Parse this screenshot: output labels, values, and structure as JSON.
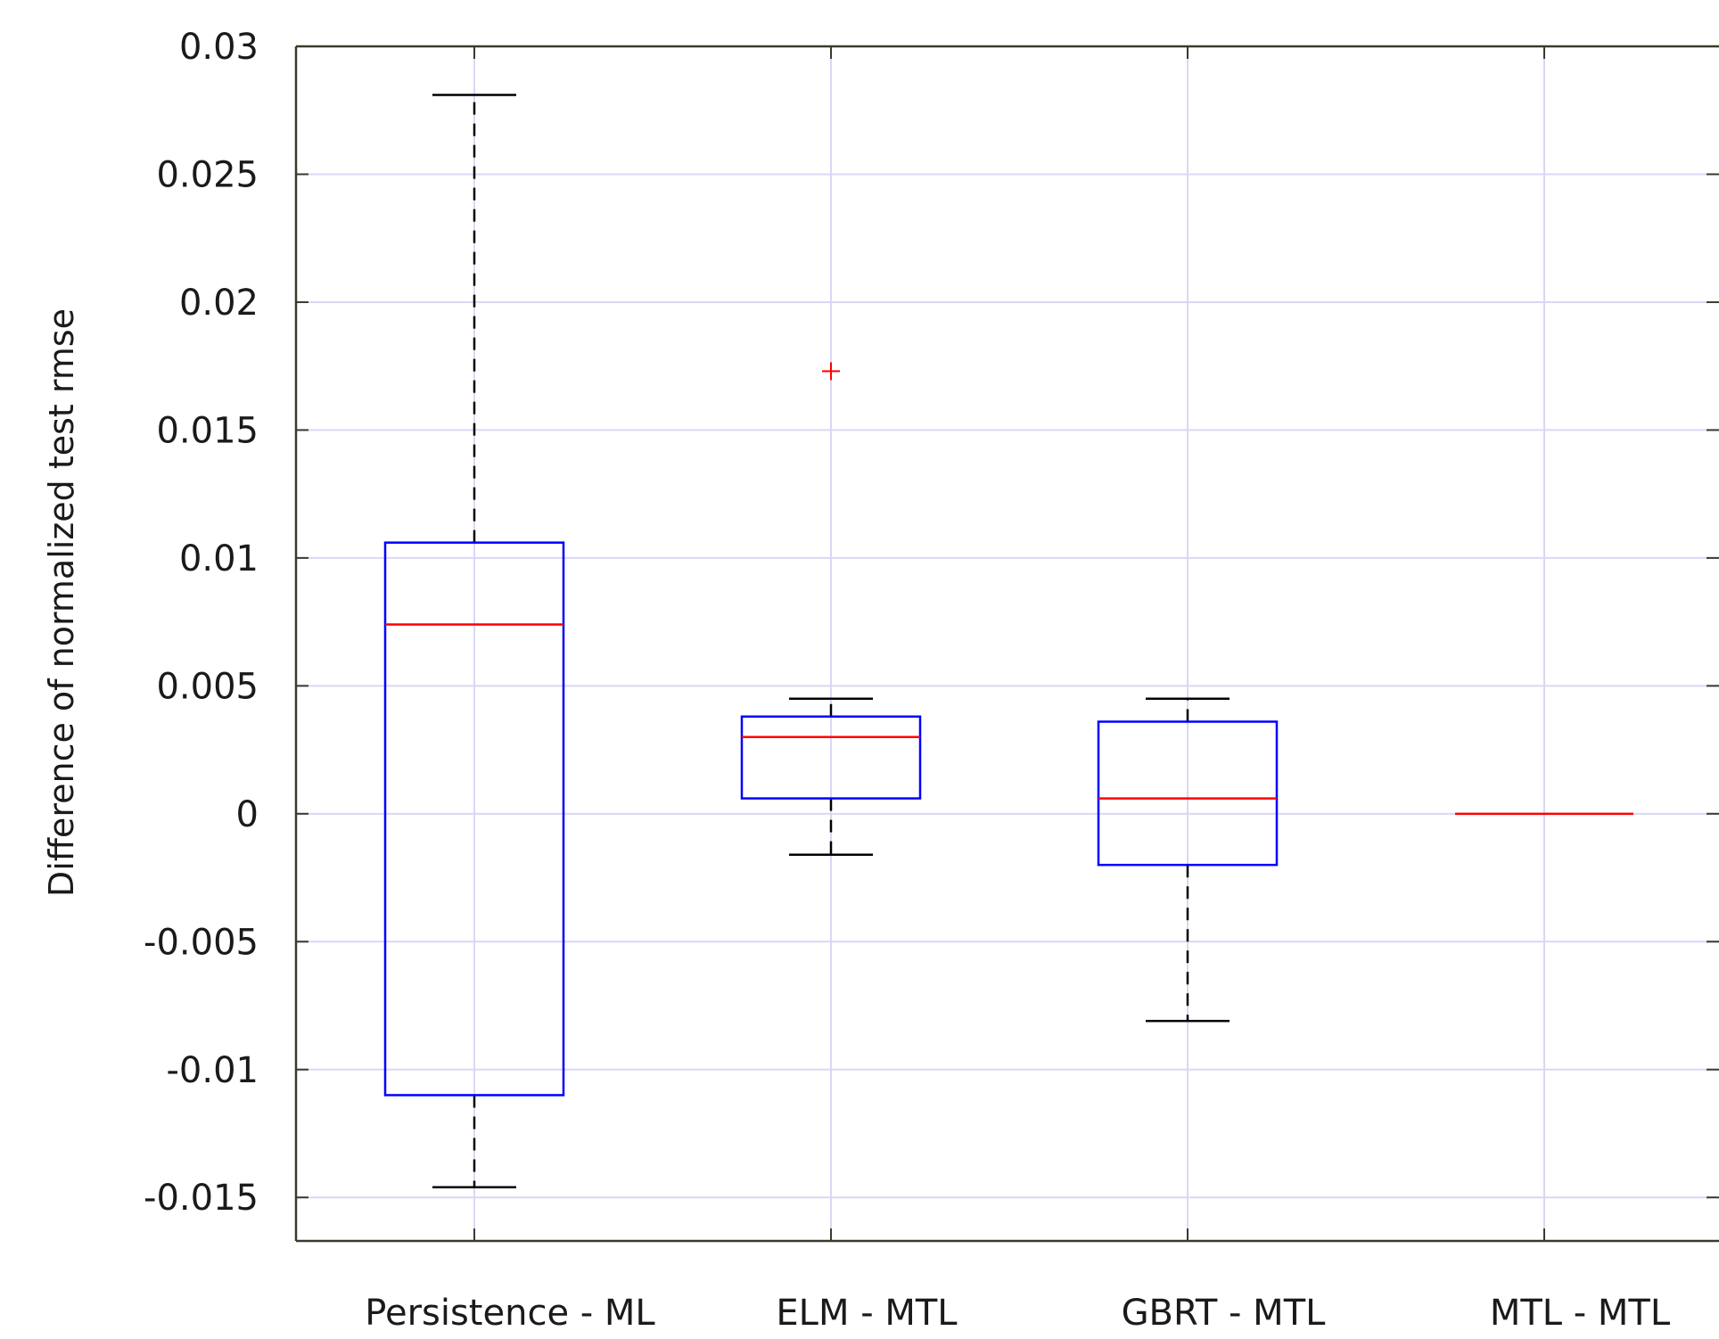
{
  "chart_data": {
    "type": "box",
    "ylabel": "Difference of normalized test rmse",
    "xlabel": "",
    "title": "",
    "ylim": [
      -0.0167,
      0.03
    ],
    "yticks": [
      -0.015,
      -0.01,
      -0.005,
      0,
      0.005,
      0.01,
      0.015,
      0.02,
      0.025,
      0.03
    ],
    "yticklabels": [
      "-0.015",
      "-0.01",
      "-0.005",
      "0",
      "0.005",
      "0.01",
      "0.015",
      "0.02",
      "0.025",
      "0.03"
    ],
    "grid": true,
    "categories": [
      "Persistence - ML",
      "ELM - MTL",
      "GBRT - MTL",
      "MTL - MTL"
    ],
    "boxes": [
      {
        "whisker_low": -0.0146,
        "q1": -0.011,
        "median": 0.0074,
        "q3": 0.0106,
        "whisker_high": 0.0281,
        "outliers": []
      },
      {
        "whisker_low": -0.0016,
        "q1": 0.0006,
        "median": 0.003,
        "q3": 0.0038,
        "whisker_high": 0.0045,
        "outliers": [
          0.0173
        ]
      },
      {
        "whisker_low": -0.0081,
        "q1": -0.002,
        "median": 0.0006,
        "q3": 0.0036,
        "whisker_high": 0.0045,
        "outliers": []
      },
      {
        "whisker_low": 0,
        "q1": 0,
        "median": 0,
        "q3": 0,
        "whisker_high": 0,
        "outliers": []
      }
    ],
    "colors": {
      "box": "#0000ff",
      "median": "#ff0000",
      "whisker": "#000000",
      "outlier": "#ff0000",
      "grid": "#d8d8f4",
      "axes": "#3a3a2a"
    }
  }
}
